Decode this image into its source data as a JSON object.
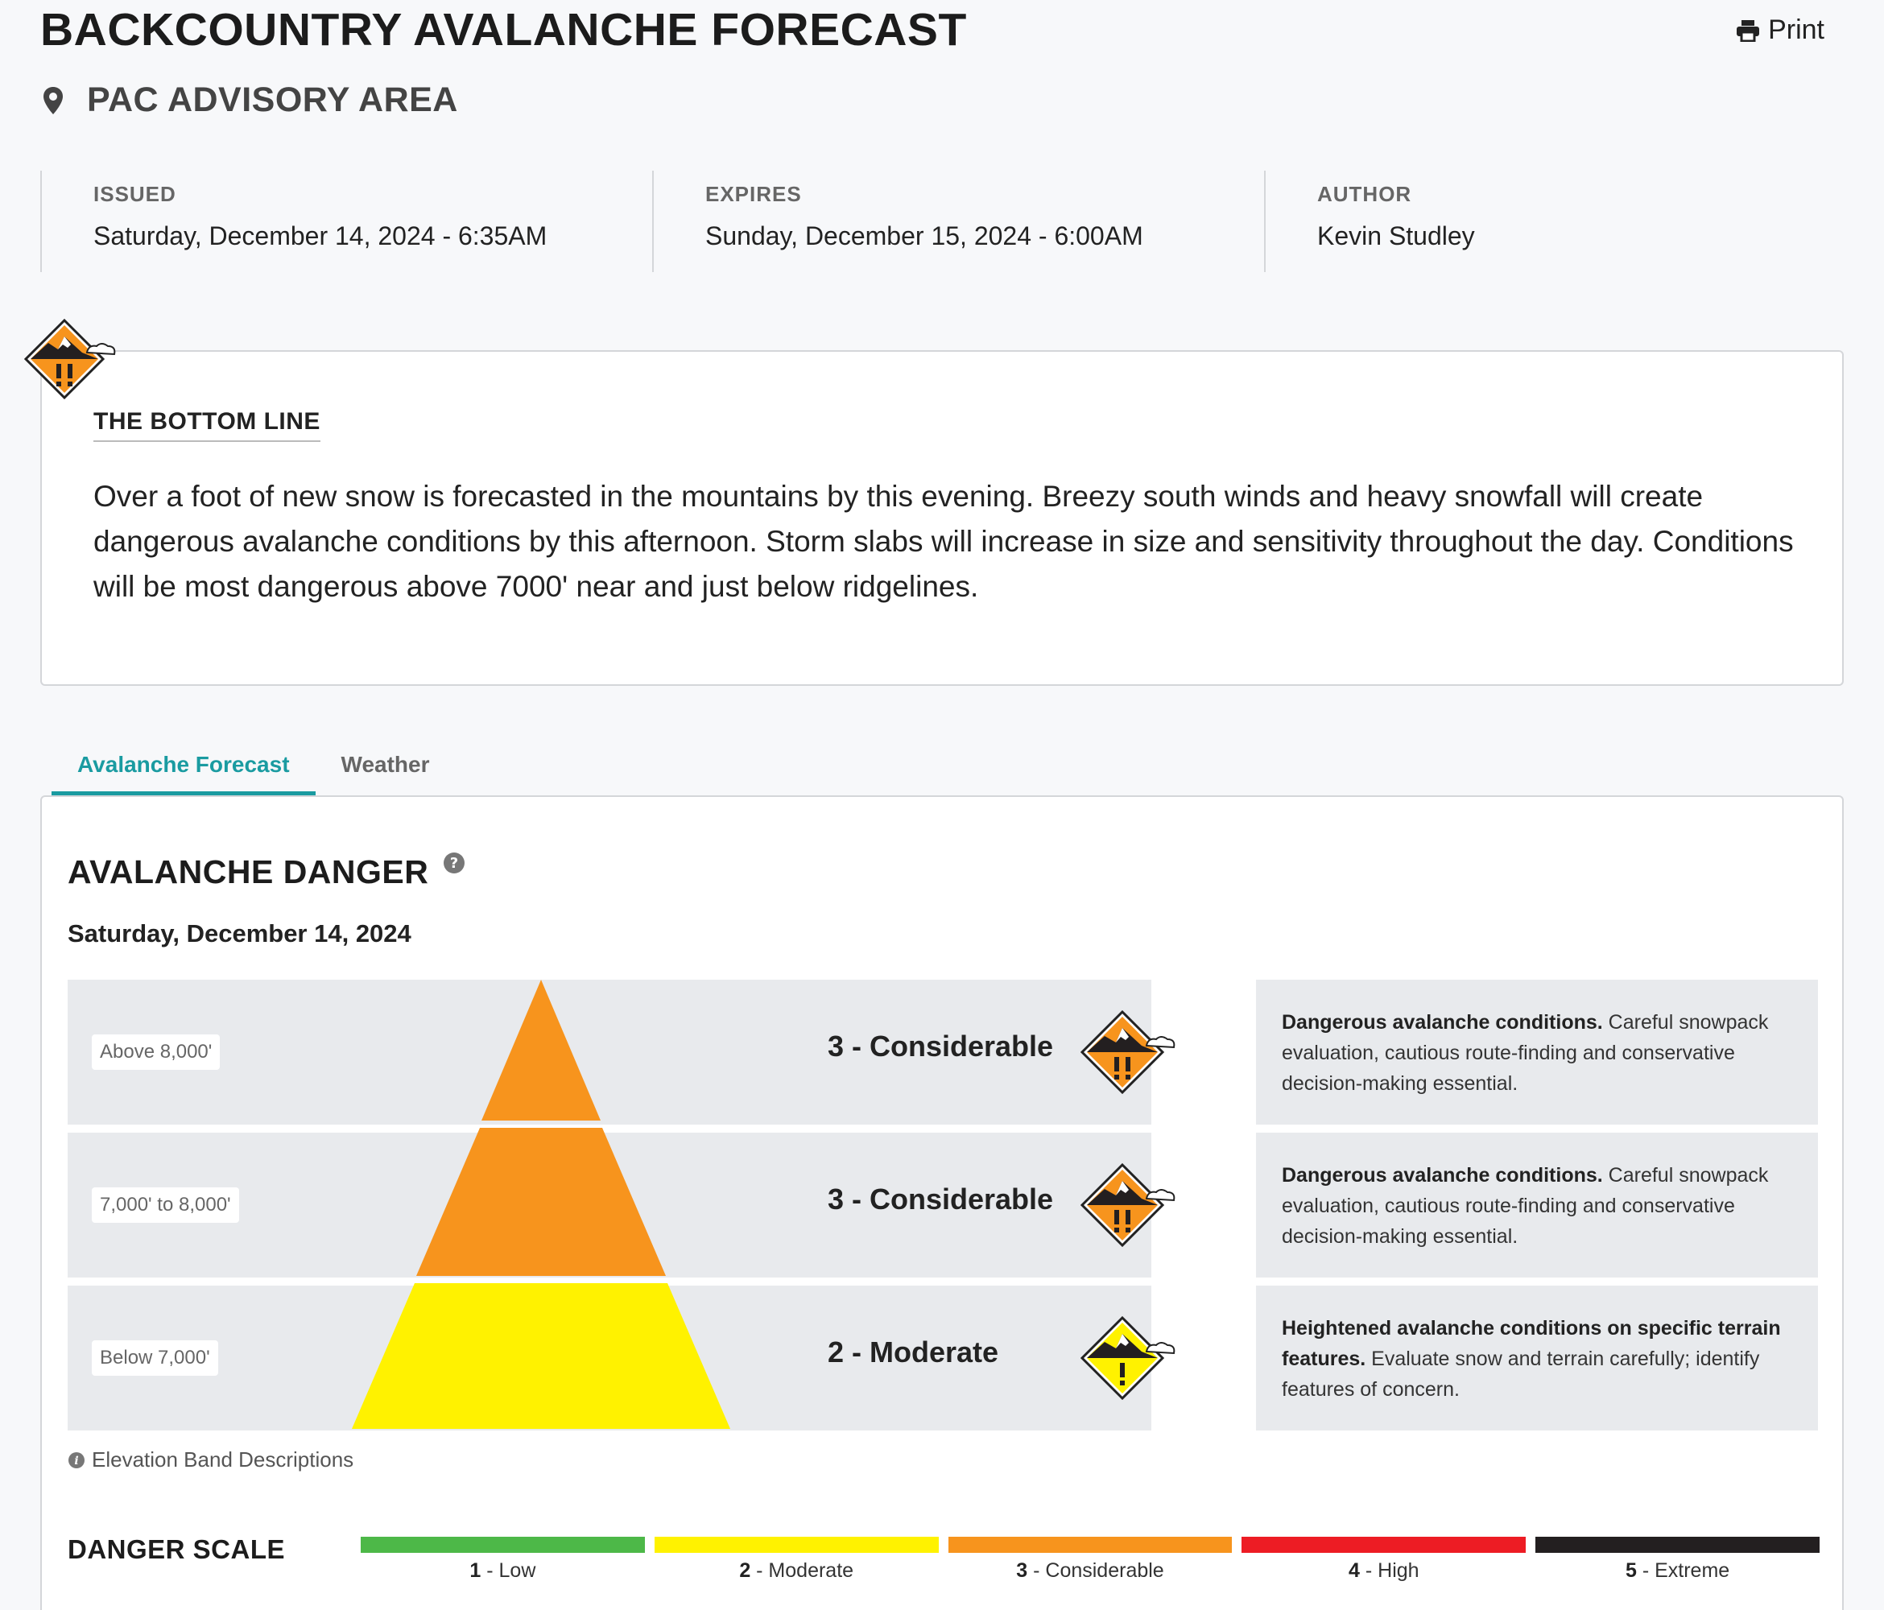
{
  "header": {
    "title": "BACKCOUNTRY AVALANCHE FORECAST",
    "print_label": "Print",
    "area": "PAC ADVISORY AREA"
  },
  "meta": [
    {
      "label": "ISSUED",
      "value": "Saturday, December 14, 2024 - 6:35AM"
    },
    {
      "label": "EXPIRES",
      "value": "Sunday, December 15, 2024 - 6:00AM"
    },
    {
      "label": "AUTHOR",
      "value": "Kevin Studley"
    }
  ],
  "bottom_line": {
    "heading": "THE BOTTOM LINE",
    "text": "Over a foot of new snow is forecasted in the mountains by this evening. Breezy south winds and heavy snowfall will create dangerous avalanche conditions by this afternoon. Storm slabs will increase in size and sensitivity throughout the day. Conditions will be most dangerous above 7000' near and just below ridgelines."
  },
  "tabs": [
    {
      "label": "Avalanche Forecast",
      "active": true
    },
    {
      "label": "Weather",
      "active": false
    }
  ],
  "danger": {
    "title": "AVALANCHE DANGER",
    "date": "Saturday, December 14, 2024",
    "bands": [
      {
        "elevation": "Above 8,000'",
        "rating": "3 - Considerable",
        "level": 3,
        "color": "#f7941d",
        "desc_bold": "Dangerous avalanche conditions.",
        "desc_rest": " Careful snowpack evaluation, cautious route-finding and conservative decision-making essential."
      },
      {
        "elevation": "7,000' to 8,000'",
        "rating": "3 - Considerable",
        "level": 3,
        "color": "#f7941d",
        "desc_bold": "Dangerous avalanche conditions.",
        "desc_rest": " Careful snowpack evaluation, cautious route-finding and conservative decision-making essential."
      },
      {
        "elevation": "Below 7,000'",
        "rating": "2 - Moderate",
        "level": 2,
        "color": "#fff200",
        "desc_bold": "Heightened avalanche conditions on specific terrain features.",
        "desc_rest": " Evaluate snow and terrain carefully; identify features of concern."
      }
    ],
    "elevation_link": "Elevation Band Descriptions"
  },
  "scale": {
    "title": "DANGER SCALE",
    "levels": [
      {
        "num": "1",
        "name": " - Low",
        "color": "#4db848"
      },
      {
        "num": "2",
        "name": " - Moderate",
        "color": "#fff200"
      },
      {
        "num": "3",
        "name": " - Considerable",
        "color": "#f7941d"
      },
      {
        "num": "4",
        "name": " - High",
        "color": "#ed1c24"
      },
      {
        "num": "5",
        "name": " - Extreme",
        "color": "#231f20"
      }
    ]
  }
}
